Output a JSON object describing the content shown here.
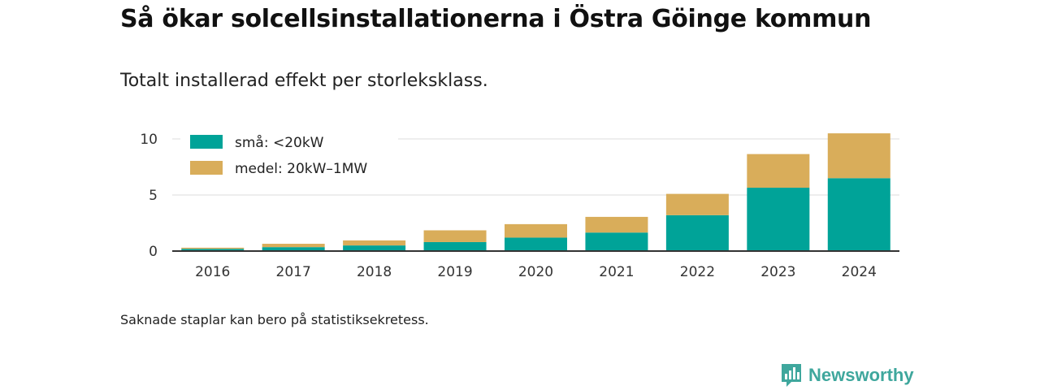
{
  "title": "Så ökar solcellsinstallationerna i Östra Göinge kommun",
  "subtitle": "Totalt installerad effekt per storleksklass.",
  "note": "Saknade staplar kan bero på statistiksekretess.",
  "brand": {
    "name": "Newsworthy",
    "icon": "newsworthy-logo-icon",
    "color": "#3fa79d"
  },
  "chart_data": {
    "type": "bar",
    "stacked": true,
    "categories": [
      "2016",
      "2017",
      "2018",
      "2019",
      "2020",
      "2021",
      "2022",
      "2023",
      "2024"
    ],
    "series": [
      {
        "name": "små: <20kW",
        "color": "#00a398",
        "values": [
          0.2,
          0.35,
          0.5,
          0.8,
          1.2,
          1.65,
          3.2,
          5.65,
          6.5
        ]
      },
      {
        "name": "medel: 20kW–1MW",
        "color": "#d9ad5a",
        "values": [
          0.1,
          0.3,
          0.45,
          1.05,
          1.2,
          1.4,
          1.9,
          3.0,
          4.0
        ]
      }
    ],
    "ylim": [
      0,
      10.5
    ],
    "yticks": [
      0,
      5,
      10
    ],
    "xlabel": "",
    "ylabel": "",
    "grid": true,
    "legend_position": "top-left"
  }
}
